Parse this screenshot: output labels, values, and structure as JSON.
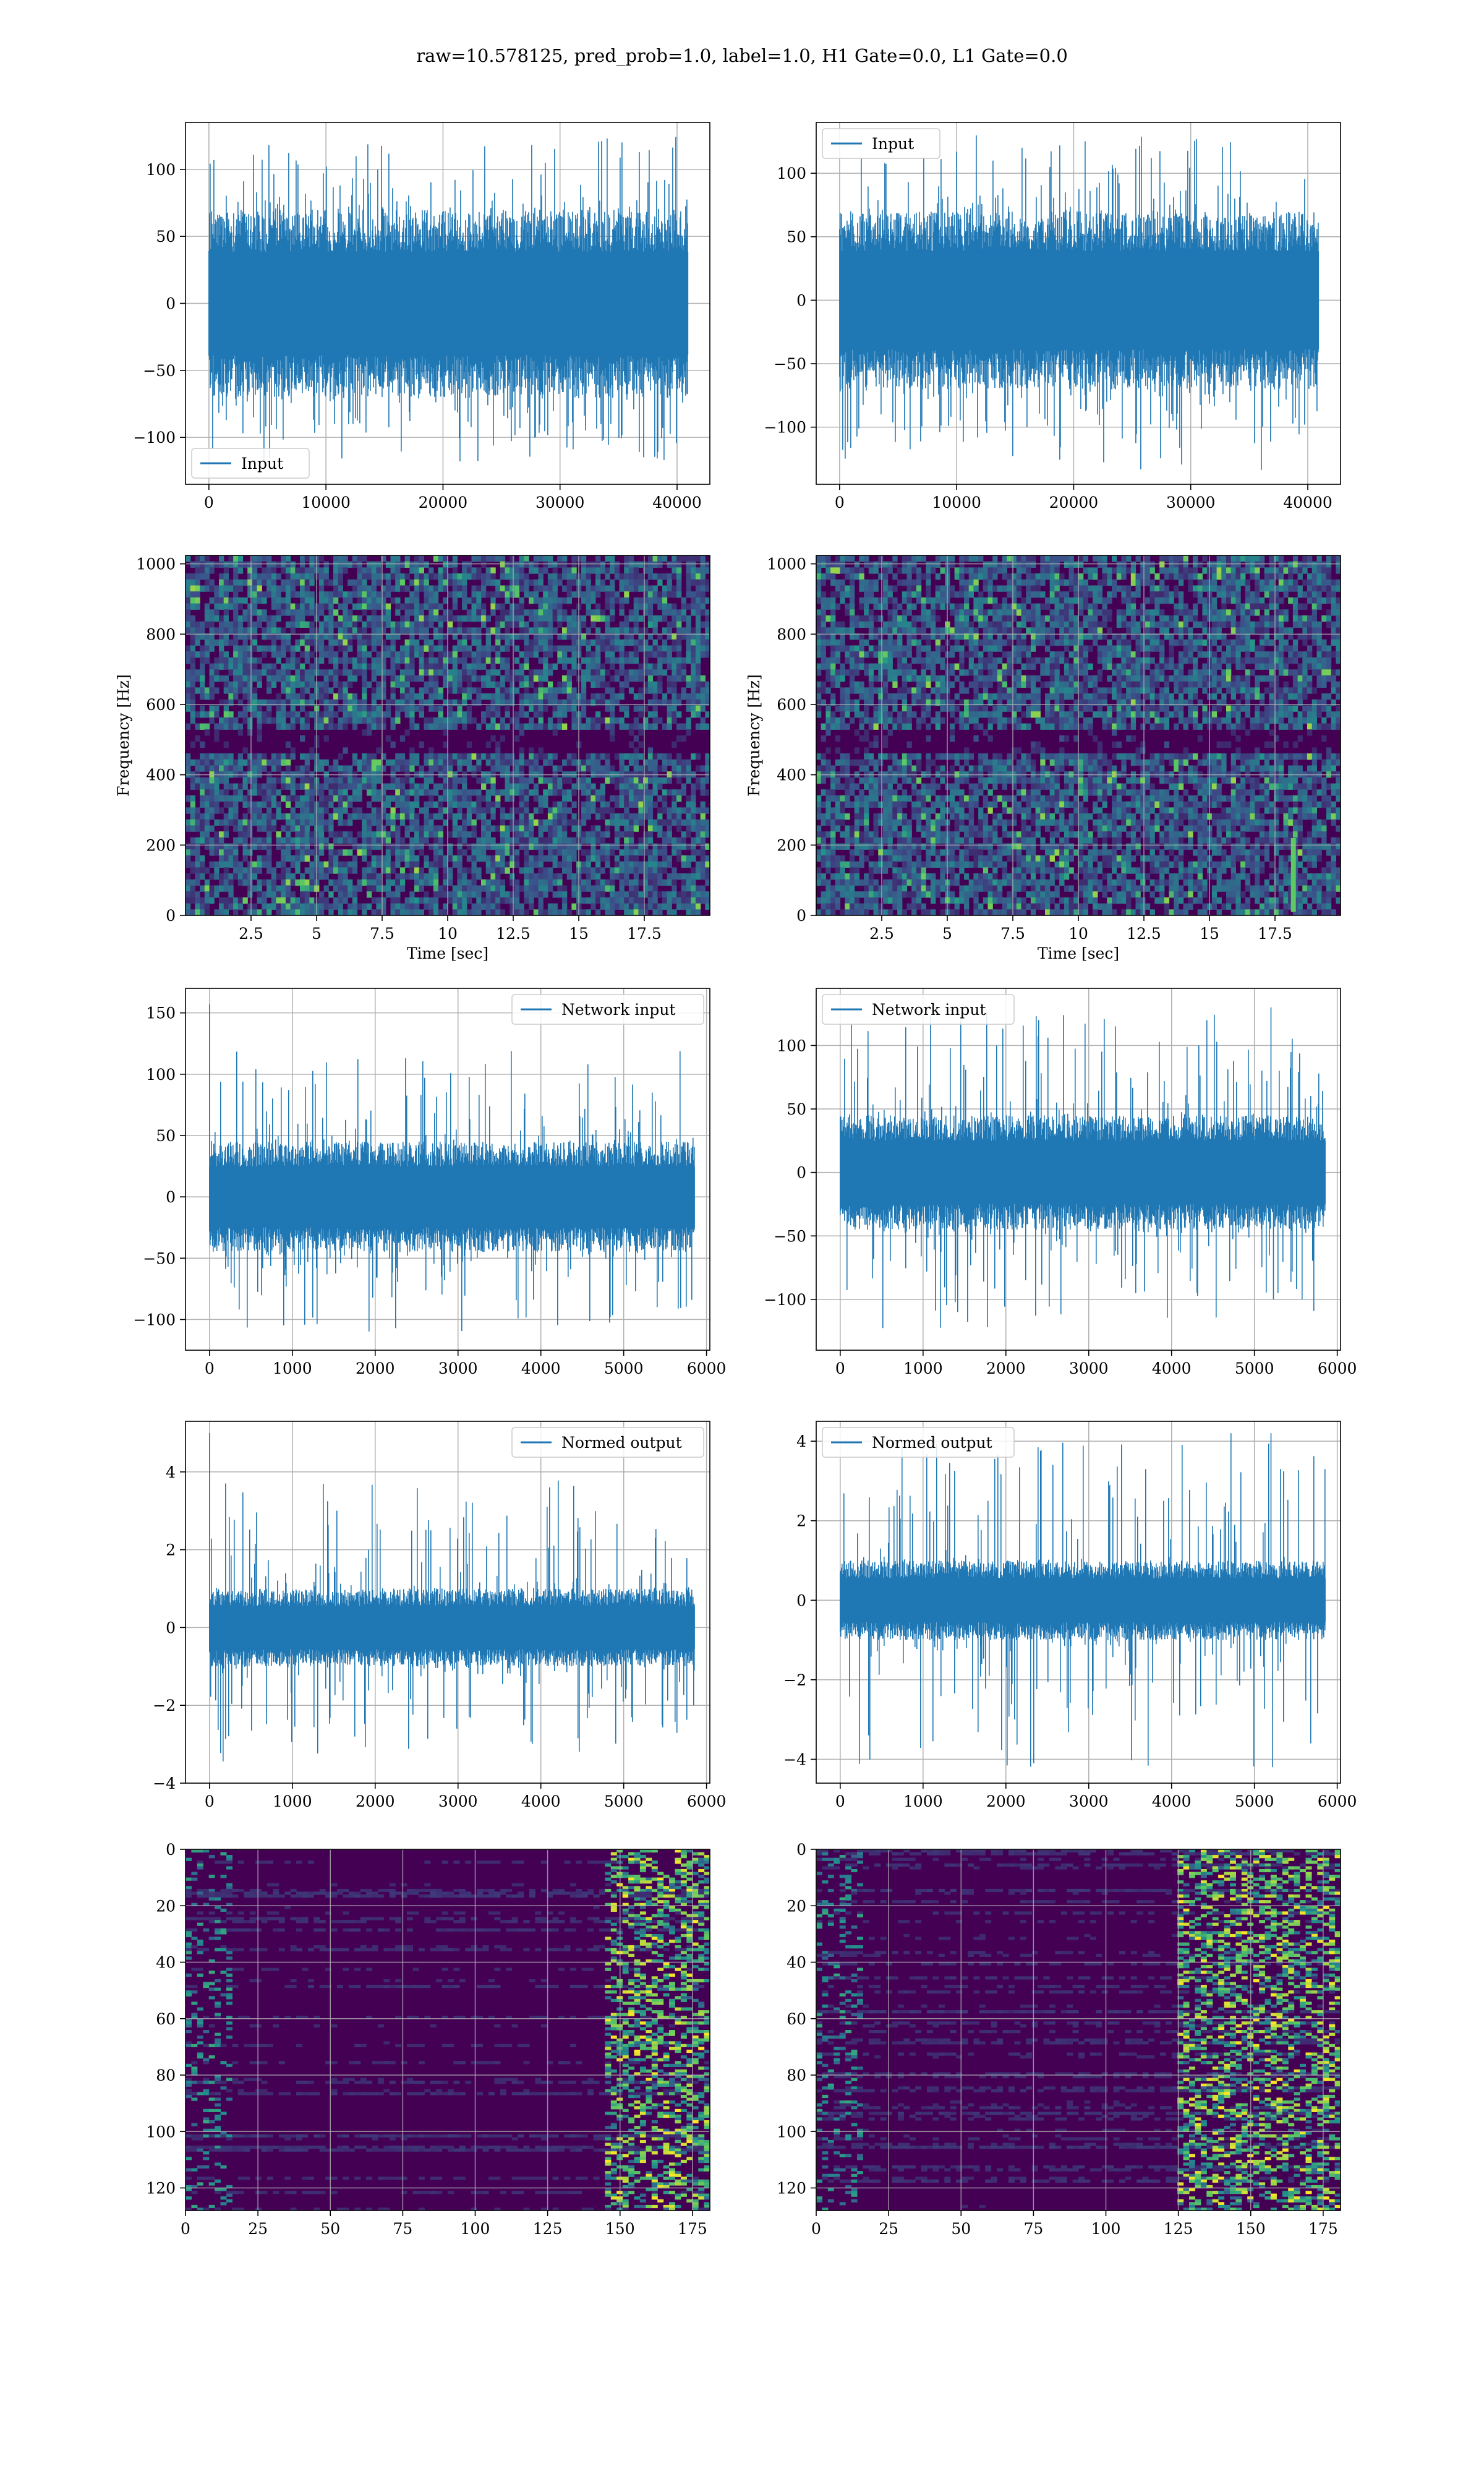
{
  "figure": {
    "title": "raw=10.578125, pred_prob=1.0, label=1.0, H1 Gate=0.0, L1 Gate=0.0"
  },
  "colors": {
    "line": "#1f77b4",
    "grid": "#b0b0b0",
    "viridis_low": "#440154",
    "viridis_mid": "#21918c",
    "viridis_high": "#fde725"
  },
  "chart_data": [
    {
      "id": "input-h1",
      "type": "line",
      "row": 0,
      "col": 0,
      "legend": "Input",
      "legend_loc": "lower-left",
      "xlim": [
        -2000,
        42800
      ],
      "ylim": [
        -135,
        135
      ],
      "xticks": [
        0,
        10000,
        20000,
        30000,
        40000
      ],
      "yticks": [
        -100,
        -50,
        0,
        50,
        100
      ],
      "series": {
        "n": 40960,
        "core_amp": 70,
        "peak_max": 125,
        "peak_min": -120,
        "spikes": []
      }
    },
    {
      "id": "input-l1",
      "type": "line",
      "row": 0,
      "col": 1,
      "legend": "Input",
      "legend_loc": "upper-left",
      "xlim": [
        -2000,
        42800
      ],
      "ylim": [
        -145,
        140
      ],
      "xticks": [
        0,
        10000,
        20000,
        30000,
        40000
      ],
      "yticks": [
        -100,
        -50,
        0,
        50,
        100
      ],
      "series": {
        "n": 40960,
        "core_amp": 70,
        "peak_max": 130,
        "peak_min": -135,
        "spikes": []
      }
    },
    {
      "id": "spec-h1",
      "type": "heatmap",
      "row": 1,
      "col": 0,
      "xlabel": "Time [sec]",
      "ylabel": "Frequency [Hz]",
      "xlim": [
        0,
        20
      ],
      "ylim": [
        0,
        1024
      ],
      "xticks": [
        2.5,
        5.0,
        7.5,
        10.0,
        12.5,
        15.0,
        17.5
      ],
      "yticks": [
        0,
        200,
        400,
        600,
        800,
        1000
      ],
      "dark_band_hz": 500
    },
    {
      "id": "spec-l1",
      "type": "heatmap",
      "row": 1,
      "col": 1,
      "xlabel": "Time [sec]",
      "ylabel": "Frequency [Hz]",
      "xlim": [
        0,
        20
      ],
      "ylim": [
        0,
        1024
      ],
      "xticks": [
        2.5,
        5.0,
        7.5,
        10.0,
        12.5,
        15.0,
        17.5
      ],
      "yticks": [
        0,
        200,
        400,
        600,
        800,
        1000
      ],
      "dark_band_hz": 500,
      "chirp_at_sec": 18.2
    },
    {
      "id": "net-h1",
      "type": "line",
      "row": 2,
      "col": 0,
      "legend": "Network input",
      "legend_loc": "upper-right",
      "xlim": [
        -290,
        6040
      ],
      "ylim": [
        -125,
        170
      ],
      "xticks": [
        0,
        1000,
        2000,
        3000,
        4000,
        5000,
        6000
      ],
      "yticks": [
        -100,
        -50,
        0,
        50,
        100,
        150
      ],
      "series": {
        "n": 5860,
        "core_amp": 45,
        "peak_max": 120,
        "peak_min": -110,
        "spikes": [
          [
            0,
            157
          ]
        ]
      }
    },
    {
      "id": "net-l1",
      "type": "line",
      "row": 2,
      "col": 1,
      "legend": "Network input",
      "legend_loc": "upper-left",
      "xlim": [
        -290,
        6040
      ],
      "ylim": [
        -140,
        145
      ],
      "xticks": [
        0,
        1000,
        2000,
        3000,
        4000,
        5000,
        6000
      ],
      "yticks": [
        -100,
        -50,
        0,
        50,
        100
      ],
      "series": {
        "n": 5860,
        "core_amp": 45,
        "peak_max": 128,
        "peak_min": -128,
        "spikes": [
          [
            5200,
            130
          ],
          [
            5230,
            -100
          ]
        ]
      }
    },
    {
      "id": "norm-h1",
      "type": "line",
      "row": 3,
      "col": 0,
      "legend": "Normed output",
      "legend_loc": "upper-right",
      "xlim": [
        -290,
        6040
      ],
      "ylim": [
        -4.0,
        5.3
      ],
      "xticks": [
        0,
        1000,
        2000,
        3000,
        4000,
        5000,
        6000
      ],
      "yticks": [
        -4,
        -2,
        0,
        2,
        4
      ],
      "series": {
        "n": 5860,
        "core_amp": 1.0,
        "peak_max": 3.8,
        "peak_min": -3.5,
        "spikes": [
          [
            0,
            5.0
          ]
        ]
      }
    },
    {
      "id": "norm-l1",
      "type": "line",
      "row": 3,
      "col": 1,
      "legend": "Normed output",
      "legend_loc": "upper-left",
      "xlim": [
        -290,
        6040
      ],
      "ylim": [
        -4.6,
        4.5
      ],
      "xticks": [
        0,
        1000,
        2000,
        3000,
        4000,
        5000,
        6000
      ],
      "yticks": [
        -4,
        -2,
        0,
        2,
        4
      ],
      "series": {
        "n": 5860,
        "core_amp": 1.0,
        "peak_max": 4.2,
        "peak_min": -4.2,
        "spikes": [
          [
            5200,
            4.2
          ],
          [
            5220,
            -4.2
          ]
        ]
      }
    },
    {
      "id": "feat-h1",
      "type": "heatmap",
      "row": 4,
      "col": 0,
      "xlim": [
        0,
        181
      ],
      "ylim": [
        128,
        0
      ],
      "xticks": [
        0,
        25,
        50,
        75,
        100,
        125,
        150,
        175
      ],
      "yticks": [
        0,
        20,
        40,
        60,
        80,
        100,
        120
      ],
      "active_from_x": 145
    },
    {
      "id": "feat-l1",
      "type": "heatmap",
      "row": 4,
      "col": 1,
      "xlim": [
        0,
        181
      ],
      "ylim": [
        128,
        0
      ],
      "xticks": [
        0,
        25,
        50,
        75,
        100,
        125,
        150,
        175
      ],
      "yticks": [
        0,
        20,
        40,
        60,
        80,
        100,
        120
      ],
      "active_from_x": 125
    }
  ]
}
